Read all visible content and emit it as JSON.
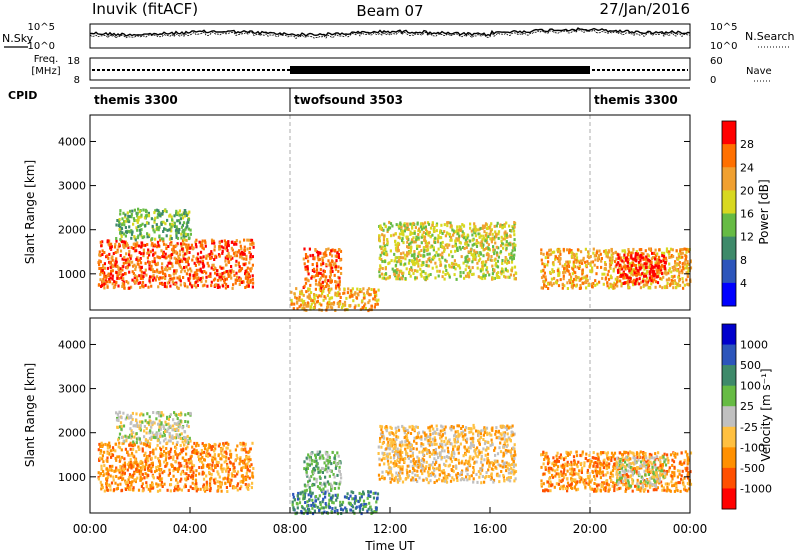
{
  "header": {
    "station": "Inuvik (fitACF)",
    "beam": "Beam 07",
    "date": "27/Jan/2016"
  },
  "top_panels": {
    "nsky_label": "N.Sky",
    "nsearch_label": "N.Search",
    "noise_ticks_left": [
      "10^5",
      "10^0"
    ],
    "noise_ticks_right": [
      "10^5",
      "10^0"
    ],
    "freq_label_1": "Freq.",
    "freq_label_2": "[MHz]",
    "freq_ticks": [
      "18",
      "8"
    ],
    "nave_label": "Nave",
    "nave_ticks": [
      "60",
      "0"
    ],
    "cpid_label": "CPID",
    "cpid_segments": [
      {
        "name": "themis 3300",
        "start_h": 0,
        "end_h": 8
      },
      {
        "name": "twofsound 3503",
        "start_h": 8,
        "end_h": 20
      },
      {
        "name": "themis 3300",
        "start_h": 20,
        "end_h": 24
      }
    ]
  },
  "chart_data": [
    {
      "type": "heatmap",
      "quantity": "Power",
      "ylabel": "Slant Range [km]",
      "colorbar_label": "Power [dB]",
      "xlim_hours": [
        0,
        24
      ],
      "ylim": [
        180,
        4600
      ],
      "yticks": [
        "1000",
        "2000",
        "3000",
        "4000"
      ],
      "colorbar_ticks": [
        "28",
        "24",
        "20",
        "16",
        "12",
        "8",
        "4"
      ],
      "colors": [
        "#0000ff",
        "#2c55bb",
        "#3e8a6a",
        "#66bb44",
        "#d8d820",
        "#f0a030",
        "#ff7000",
        "#ff0000"
      ],
      "regions": [
        {
          "t0": 0.3,
          "t1": 6.5,
          "r0": 700,
          "r1": 1800,
          "level": 6
        },
        {
          "t0": 1.0,
          "t1": 4.0,
          "r0": 1800,
          "r1": 2500,
          "level": 3
        },
        {
          "t0": 8.0,
          "t1": 11.5,
          "r0": 200,
          "r1": 700,
          "level": 5
        },
        {
          "t0": 8.5,
          "t1": 10.0,
          "r0": 700,
          "r1": 1600,
          "level": 6
        },
        {
          "t0": 11.5,
          "t1": 17.0,
          "r0": 900,
          "r1": 2200,
          "level": 4
        },
        {
          "t0": 18.0,
          "t1": 24.0,
          "r0": 700,
          "r1": 1600,
          "level": 5
        },
        {
          "t0": 21.0,
          "t1": 23.0,
          "r0": 800,
          "r1": 1500,
          "level": 7
        }
      ]
    },
    {
      "type": "heatmap",
      "quantity": "Velocity",
      "ylabel": "Slant Range [km]",
      "colorbar_label": "Velocity [m s⁻¹]",
      "xlabel": "Time UT",
      "xlim_hours": [
        0,
        24
      ],
      "ylim": [
        180,
        4600
      ],
      "yticks": [
        "1000",
        "2000",
        "3000",
        "4000"
      ],
      "xticks": [
        "00:00",
        "04:00",
        "08:00",
        "12:00",
        "16:00",
        "20:00",
        "00:00"
      ],
      "colorbar_ticks": [
        "1000",
        "500",
        "100",
        "25",
        "-25",
        "-100",
        "-500",
        "-1000"
      ],
      "colors": [
        "#ff0000",
        "#ff5000",
        "#ff9000",
        "#ffc040",
        "#c0c0c0",
        "#66bb44",
        "#3e8a6a",
        "#2c55bb",
        "#0000cc"
      ],
      "regions": [
        {
          "t0": 0.3,
          "t1": 6.5,
          "r0": 700,
          "r1": 1800,
          "level": 2
        },
        {
          "t0": 1.0,
          "t1": 4.0,
          "r0": 1800,
          "r1": 2500,
          "level": 4
        },
        {
          "t0": 8.0,
          "t1": 11.5,
          "r0": 200,
          "r1": 700,
          "level": 6
        },
        {
          "t0": 8.5,
          "t1": 10.0,
          "r0": 700,
          "r1": 1600,
          "level": 5
        },
        {
          "t0": 11.5,
          "t1": 17.0,
          "r0": 900,
          "r1": 2200,
          "level": 3
        },
        {
          "t0": 18.0,
          "t1": 24.0,
          "r0": 700,
          "r1": 1600,
          "level": 2
        },
        {
          "t0": 21.0,
          "t1": 23.0,
          "r0": 800,
          "r1": 1500,
          "level": 4
        }
      ]
    }
  ]
}
